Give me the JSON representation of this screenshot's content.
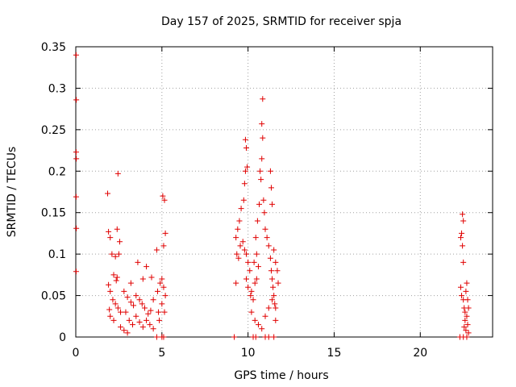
{
  "chart_data": {
    "type": "scatter",
    "title": "Day 157 of 2025, SRMTID for receiver spja",
    "xlabel": "GPS time / hours",
    "ylabel": "SRMTID / TECUs",
    "xlim": [
      0,
      24.2
    ],
    "ylim": [
      0,
      0.35
    ],
    "xticks": [
      0,
      5,
      10,
      15,
      20
    ],
    "xtick_labels": [
      "0",
      "5",
      "10",
      "15",
      "20"
    ],
    "yticks": [
      0,
      0.05,
      0.1,
      0.15,
      0.2,
      0.25,
      0.3,
      0.35
    ],
    "ytick_labels": [
      "0",
      "0.05",
      "0.1",
      "0.15",
      "0.2",
      "0.25",
      "0.3",
      "0.35"
    ],
    "grid": true,
    "marker": "+",
    "color": "#e00000",
    "series": [
      {
        "name": "SRMTID",
        "points": [
          [
            0.02,
            0.34
          ],
          [
            0.03,
            0.286
          ],
          [
            0.02,
            0.223
          ],
          [
            0.03,
            0.215
          ],
          [
            0.02,
            0.169
          ],
          [
            0.03,
            0.131
          ],
          [
            0.02,
            0.079
          ],
          [
            1.85,
            0.173
          ],
          [
            2.45,
            0.197
          ],
          [
            1.9,
            0.127
          ],
          [
            2.0,
            0.12
          ],
          [
            2.4,
            0.13
          ],
          [
            2.55,
            0.115
          ],
          [
            2.1,
            0.1
          ],
          [
            2.3,
            0.097
          ],
          [
            2.5,
            0.1
          ],
          [
            2.2,
            0.075
          ],
          [
            2.4,
            0.072
          ],
          [
            2.35,
            0.068
          ],
          [
            1.9,
            0.063
          ],
          [
            2.0,
            0.055
          ],
          [
            2.15,
            0.045
          ],
          [
            2.3,
            0.04
          ],
          [
            2.45,
            0.035
          ],
          [
            2.6,
            0.03
          ],
          [
            2.8,
            0.055
          ],
          [
            3.0,
            0.048
          ],
          [
            3.2,
            0.042
          ],
          [
            3.35,
            0.038
          ],
          [
            3.5,
            0.05
          ],
          [
            3.7,
            0.045
          ],
          [
            3.85,
            0.04
          ],
          [
            4.0,
            0.035
          ],
          [
            4.2,
            0.028
          ],
          [
            4.35,
            0.032
          ],
          [
            4.5,
            0.045
          ],
          [
            3.6,
            0.09
          ],
          [
            4.1,
            0.085
          ],
          [
            4.4,
            0.072
          ],
          [
            4.7,
            0.105
          ],
          [
            3.9,
            0.07
          ],
          [
            3.2,
            0.065
          ],
          [
            2.9,
            0.03
          ],
          [
            3.1,
            0.02
          ],
          [
            3.3,
            0.015
          ],
          [
            3.5,
            0.025
          ],
          [
            3.7,
            0.018
          ],
          [
            3.9,
            0.012
          ],
          [
            4.1,
            0.02
          ],
          [
            4.3,
            0.015
          ],
          [
            4.5,
            0.01
          ],
          [
            2.6,
            0.012
          ],
          [
            2.8,
            0.008
          ],
          [
            3.0,
            0.005
          ],
          [
            2.2,
            0.02
          ],
          [
            2.0,
            0.025
          ],
          [
            1.95,
            0.033
          ],
          [
            5.05,
            0.17
          ],
          [
            5.15,
            0.165
          ],
          [
            5.2,
            0.125
          ],
          [
            5.1,
            0.11
          ],
          [
            5.0,
            0.07
          ],
          [
            5.1,
            0.06
          ],
          [
            5.2,
            0.05
          ],
          [
            5.0,
            0.04
          ],
          [
            5.15,
            0.03
          ],
          [
            4.9,
            0.065
          ],
          [
            4.75,
            0.055
          ],
          [
            4.8,
            0.03
          ],
          [
            4.85,
            0.02
          ],
          [
            4.7,
            0.0
          ],
          [
            5.0,
            0.0
          ],
          [
            5.1,
            0.0
          ],
          [
            9.2,
            0.0
          ],
          [
            10.3,
            0.0
          ],
          [
            10.45,
            0.0
          ],
          [
            11.0,
            0.0
          ],
          [
            11.2,
            0.0
          ],
          [
            11.5,
            0.0
          ],
          [
            9.85,
            0.238
          ],
          [
            9.9,
            0.228
          ],
          [
            9.85,
            0.2
          ],
          [
            9.95,
            0.205
          ],
          [
            9.8,
            0.185
          ],
          [
            9.75,
            0.165
          ],
          [
            9.6,
            0.155
          ],
          [
            9.5,
            0.14
          ],
          [
            9.4,
            0.13
          ],
          [
            9.3,
            0.12
          ],
          [
            9.35,
            0.1
          ],
          [
            9.45,
            0.095
          ],
          [
            9.55,
            0.11
          ],
          [
            9.7,
            0.115
          ],
          [
            9.8,
            0.105
          ],
          [
            9.9,
            0.1
          ],
          [
            10.0,
            0.09
          ],
          [
            10.1,
            0.08
          ],
          [
            9.9,
            0.07
          ],
          [
            10.0,
            0.06
          ],
          [
            10.15,
            0.05
          ],
          [
            10.3,
            0.045
          ],
          [
            10.2,
            0.055
          ],
          [
            10.4,
            0.065
          ],
          [
            10.5,
            0.07
          ],
          [
            10.35,
            0.09
          ],
          [
            10.5,
            0.1
          ],
          [
            10.6,
            0.085
          ],
          [
            10.45,
            0.12
          ],
          [
            10.55,
            0.14
          ],
          [
            10.65,
            0.16
          ],
          [
            10.7,
            0.2
          ],
          [
            10.75,
            0.19
          ],
          [
            10.8,
            0.215
          ],
          [
            10.85,
            0.24
          ],
          [
            10.8,
            0.257
          ],
          [
            10.85,
            0.287
          ],
          [
            10.9,
            0.165
          ],
          [
            10.95,
            0.15
          ],
          [
            11.0,
            0.13
          ],
          [
            11.1,
            0.12
          ],
          [
            11.2,
            0.11
          ],
          [
            11.3,
            0.095
          ],
          [
            11.35,
            0.08
          ],
          [
            11.4,
            0.07
          ],
          [
            11.45,
            0.06
          ],
          [
            11.5,
            0.05
          ],
          [
            11.55,
            0.04
          ],
          [
            11.6,
            0.035
          ],
          [
            11.3,
            0.2
          ],
          [
            11.35,
            0.18
          ],
          [
            11.4,
            0.16
          ],
          [
            11.5,
            0.105
          ],
          [
            11.6,
            0.09
          ],
          [
            11.7,
            0.08
          ],
          [
            11.75,
            0.065
          ],
          [
            10.2,
            0.03
          ],
          [
            10.4,
            0.02
          ],
          [
            10.6,
            0.015
          ],
          [
            10.8,
            0.01
          ],
          [
            11.0,
            0.025
          ],
          [
            11.2,
            0.035
          ],
          [
            11.4,
            0.045
          ],
          [
            11.6,
            0.02
          ],
          [
            9.3,
            0.065
          ],
          [
            22.45,
            0.148
          ],
          [
            22.5,
            0.14
          ],
          [
            22.4,
            0.125
          ],
          [
            22.35,
            0.12
          ],
          [
            22.45,
            0.11
          ],
          [
            22.5,
            0.09
          ],
          [
            22.35,
            0.06
          ],
          [
            22.4,
            0.05
          ],
          [
            22.5,
            0.045
          ],
          [
            22.55,
            0.035
          ],
          [
            22.6,
            0.03
          ],
          [
            22.7,
            0.065
          ],
          [
            22.65,
            0.055
          ],
          [
            22.75,
            0.045
          ],
          [
            22.8,
            0.035
          ],
          [
            22.7,
            0.025
          ],
          [
            22.6,
            0.02
          ],
          [
            22.55,
            0.012
          ],
          [
            22.65,
            0.008
          ],
          [
            22.75,
            0.015
          ],
          [
            22.8,
            0.005
          ],
          [
            22.3,
            0.0
          ],
          [
            22.5,
            0.0
          ],
          [
            22.7,
            0.0
          ]
        ]
      }
    ]
  }
}
